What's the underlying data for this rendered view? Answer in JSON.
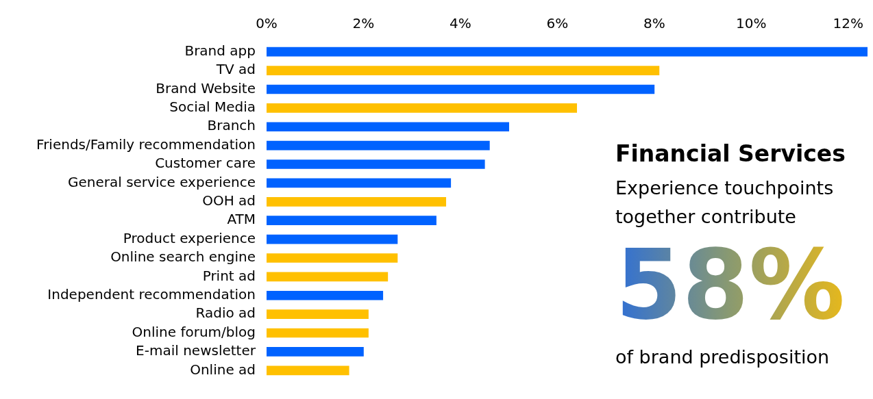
{
  "chart_data": {
    "type": "bar",
    "orientation": "horizontal",
    "title": "Financial Services",
    "annotations": [
      "Experience touchpoints together contribute",
      "58%",
      "of brand predisposition"
    ],
    "categories": [
      "Brand app",
      "TV ad",
      "Brand Website",
      "Social Media",
      "Branch",
      "Friends/Family recommendation",
      "Customer care",
      "General service experience",
      "OOH ad",
      "ATM",
      "Product experience",
      "Online search engine",
      "Print ad",
      "Independent recommendation",
      "Radio ad",
      "Online forum/blog",
      "E-mail newsletter",
      "Online ad"
    ],
    "values": [
      12.4,
      8.1,
      8.0,
      6.4,
      5.0,
      4.6,
      4.5,
      3.8,
      3.7,
      3.5,
      2.7,
      2.7,
      2.5,
      2.4,
      2.1,
      2.1,
      2.0,
      1.7
    ],
    "colors": [
      "#0062ff",
      "#ffc000",
      "#0062ff",
      "#ffc000",
      "#0062ff",
      "#0062ff",
      "#0062ff",
      "#0062ff",
      "#ffc000",
      "#0062ff",
      "#0062ff",
      "#ffc000",
      "#ffc000",
      "#0062ff",
      "#ffc000",
      "#ffc000",
      "#0062ff",
      "#ffc000"
    ],
    "xlim": [
      0,
      12.4
    ],
    "xticks": [
      {
        "value": 0,
        "label": "0%"
      },
      {
        "value": 2,
        "label": "2%"
      },
      {
        "value": 4,
        "label": "4%"
      },
      {
        "value": 6,
        "label": "6%"
      },
      {
        "value": 8,
        "label": "8%"
      },
      {
        "value": 10,
        "label": "10%"
      },
      {
        "value": 12,
        "label": "12%"
      }
    ],
    "grid": false,
    "legend": false
  }
}
